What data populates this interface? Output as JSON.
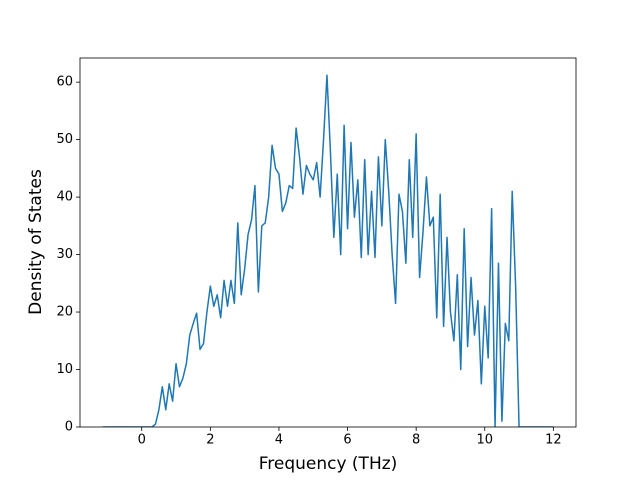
{
  "chart_data": {
    "type": "line",
    "xlabel": "Frequency (THz)",
    "ylabel": "Density of States",
    "xlim": [
      -1.8,
      12.66
    ],
    "ylim": [
      0,
      64.2
    ],
    "xticks": [
      0,
      2,
      4,
      6,
      8,
      10,
      12
    ],
    "yticks": [
      0,
      10,
      20,
      30,
      40,
      50,
      60
    ],
    "grid": false,
    "series": [
      {
        "color": "#1f77b4",
        "x": [
          -1.14,
          0.3,
          0.4,
          0.5,
          0.6,
          0.7,
          0.8,
          0.9,
          1.0,
          1.1,
          1.2,
          1.3,
          1.4,
          1.5,
          1.6,
          1.7,
          1.8,
          1.9,
          2.0,
          2.1,
          2.2,
          2.3,
          2.4,
          2.5,
          2.6,
          2.7,
          2.8,
          2.9,
          3.0,
          3.1,
          3.2,
          3.3,
          3.4,
          3.5,
          3.6,
          3.7,
          3.8,
          3.9,
          4.0,
          4.1,
          4.2,
          4.3,
          4.4,
          4.5,
          4.6,
          4.7,
          4.8,
          4.9,
          5.0,
          5.1,
          5.2,
          5.3,
          5.4,
          5.5,
          5.6,
          5.7,
          5.8,
          5.9,
          6.0,
          6.1,
          6.2,
          6.3,
          6.4,
          6.5,
          6.6,
          6.7,
          6.8,
          6.9,
          7.0,
          7.1,
          7.2,
          7.3,
          7.4,
          7.5,
          7.6,
          7.7,
          7.8,
          7.9,
          8.0,
          8.1,
          8.2,
          8.3,
          8.4,
          8.5,
          8.6,
          8.7,
          8.8,
          8.9,
          9.0,
          9.1,
          9.2,
          9.3,
          9.4,
          9.5,
          9.6,
          9.7,
          9.8,
          9.9,
          10.0,
          10.1,
          10.2,
          10.3,
          10.4,
          10.5,
          10.6,
          10.7,
          10.8,
          10.9,
          11.0,
          12.0
        ],
        "values": [
          0,
          0,
          0.5,
          3,
          7,
          3,
          7.5,
          4.5,
          11,
          7,
          8.5,
          11,
          16,
          18,
          19.8,
          13.5,
          14.5,
          20,
          24.5,
          21,
          23,
          19,
          25.5,
          21,
          25.5,
          21.5,
          35.5,
          23,
          27.5,
          33.5,
          36,
          42,
          23.5,
          35,
          35.5,
          40,
          49,
          45,
          44,
          37.5,
          39,
          42,
          41.5,
          52,
          47,
          40.5,
          45.5,
          44,
          43,
          46,
          40,
          50,
          61.2,
          48,
          33,
          44,
          30,
          52.5,
          34.5,
          49.5,
          36.5,
          43,
          29.5,
          46.5,
          30,
          41,
          29.5,
          47,
          35,
          50,
          41,
          30,
          21.5,
          40.5,
          37.5,
          28.5,
          46.5,
          33,
          51,
          26,
          34,
          43.5,
          35,
          36.5,
          19,
          40.5,
          17.5,
          33,
          20,
          15,
          26.5,
          10,
          34.5,
          14,
          26,
          16,
          22,
          7.5,
          21,
          12,
          38,
          0,
          28.5,
          1,
          18,
          15,
          41,
          24.5,
          0,
          0
        ]
      }
    ]
  }
}
